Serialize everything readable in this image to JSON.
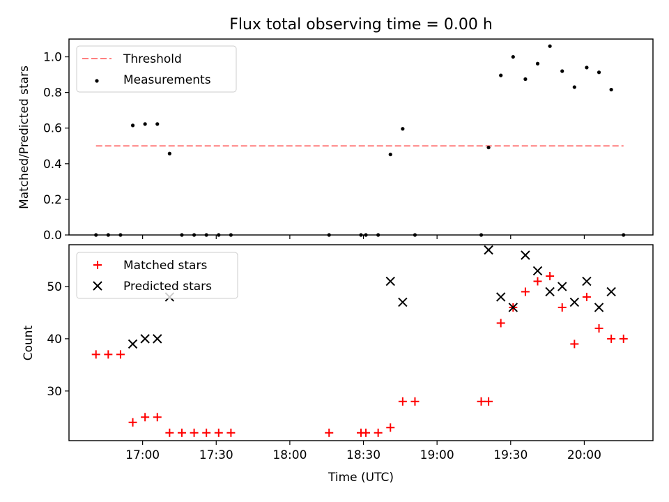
{
  "chart_data": [
    {
      "type": "scatter",
      "title": "Flux total observing time = 0.00 h",
      "ylabel": "Matched/Predicted stars",
      "xlabel": "",
      "ylim": [
        0,
        1.1
      ],
      "yticks": [
        "0.0",
        "0.2",
        "0.4",
        "0.6",
        "0.8",
        "1.0"
      ],
      "legend_position": "top-left",
      "threshold": {
        "name": "Threshold",
        "value": 0.5,
        "color": "#ff7f7f",
        "x_start": "16:41",
        "x_end": "20:16"
      },
      "series": [
        {
          "name": "Measurements",
          "color": "#000000",
          "marker": "dot",
          "points": [
            [
              "16:41",
              0
            ],
            [
              "16:46",
              0
            ],
            [
              "16:51",
              0
            ],
            [
              "16:56",
              0.615
            ],
            [
              "17:01",
              0.623
            ],
            [
              "17:06",
              0.623
            ],
            [
              "17:11",
              0.457
            ],
            [
              "17:16",
              0
            ],
            [
              "17:21",
              0
            ],
            [
              "17:26",
              0
            ],
            [
              "17:31",
              0
            ],
            [
              "17:36",
              0
            ],
            [
              "18:16",
              0
            ],
            [
              "18:29",
              0
            ],
            [
              "18:31",
              0
            ],
            [
              "18:36",
              0
            ],
            [
              "18:41",
              0.452
            ],
            [
              "18:46",
              0.596
            ],
            [
              "18:51",
              0
            ],
            [
              "19:18",
              0
            ],
            [
              "19:21",
              0.491
            ],
            [
              "19:26",
              0.896
            ],
            [
              "19:31",
              1.0
            ],
            [
              "19:36",
              0.875
            ],
            [
              "19:41",
              0.962
            ],
            [
              "19:46",
              1.06
            ],
            [
              "19:51",
              0.92
            ],
            [
              "19:56",
              0.83
            ],
            [
              "20:01",
              0.94
            ],
            [
              "20:06",
              0.913
            ],
            [
              "20:11",
              0.816
            ],
            [
              "20:16",
              0
            ]
          ]
        }
      ]
    },
    {
      "type": "scatter",
      "title": "",
      "ylabel": "Count",
      "xlabel": "Time (UTC)",
      "xlim": [
        "16:30",
        "20:28"
      ],
      "ylim": [
        20.5,
        58
      ],
      "yticks": [
        "30",
        "40",
        "50"
      ],
      "xticks": [
        "17:00",
        "17:30",
        "18:00",
        "18:30",
        "19:00",
        "19:30",
        "20:00"
      ],
      "legend_position": "top-left",
      "series": [
        {
          "name": "Matched stars",
          "color": "#ff0000",
          "marker": "plus",
          "points": [
            [
              "16:41",
              37
            ],
            [
              "16:46",
              37
            ],
            [
              "16:51",
              37
            ],
            [
              "16:56",
              24
            ],
            [
              "17:01",
              25
            ],
            [
              "17:06",
              25
            ],
            [
              "17:11",
              22
            ],
            [
              "17:16",
              22
            ],
            [
              "17:21",
              22
            ],
            [
              "17:26",
              22
            ],
            [
              "17:31",
              22
            ],
            [
              "17:36",
              22
            ],
            [
              "18:16",
              22
            ],
            [
              "18:29",
              22
            ],
            [
              "18:31",
              22
            ],
            [
              "18:36",
              22
            ],
            [
              "18:41",
              23
            ],
            [
              "18:46",
              28
            ],
            [
              "18:51",
              28
            ],
            [
              "19:18",
              28
            ],
            [
              "19:21",
              28
            ],
            [
              "19:26",
              43
            ],
            [
              "19:31",
              46
            ],
            [
              "19:36",
              49
            ],
            [
              "19:41",
              51
            ],
            [
              "19:46",
              52
            ],
            [
              "19:51",
              46
            ],
            [
              "19:56",
              39
            ],
            [
              "20:01",
              48
            ],
            [
              "20:06",
              42
            ],
            [
              "20:11",
              40
            ],
            [
              "20:16",
              40
            ]
          ]
        },
        {
          "name": "Predicted stars",
          "color": "#000000",
          "marker": "x",
          "points": [
            [
              "16:56",
              39
            ],
            [
              "17:01",
              40
            ],
            [
              "17:06",
              40
            ],
            [
              "17:11",
              48
            ],
            [
              "18:41",
              51
            ],
            [
              "18:46",
              47
            ],
            [
              "19:21",
              57
            ],
            [
              "19:26",
              48
            ],
            [
              "19:31",
              46
            ],
            [
              "19:36",
              56
            ],
            [
              "19:41",
              53
            ],
            [
              "19:46",
              49
            ],
            [
              "19:51",
              50
            ],
            [
              "19:56",
              47
            ],
            [
              "20:01",
              51
            ],
            [
              "20:06",
              46
            ],
            [
              "20:11",
              49
            ]
          ]
        }
      ]
    }
  ]
}
